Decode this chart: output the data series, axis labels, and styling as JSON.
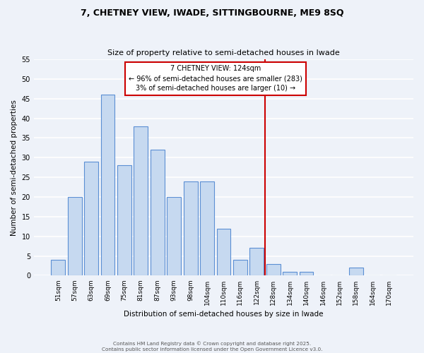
{
  "title": "7, CHETNEY VIEW, IWADE, SITTINGBOURNE, ME9 8SQ",
  "subtitle": "Size of property relative to semi-detached houses in Iwade",
  "xlabel": "Distribution of semi-detached houses by size in Iwade",
  "ylabel": "Number of semi-detached properties",
  "categories": [
    "51sqm",
    "57sqm",
    "63sqm",
    "69sqm",
    "75sqm",
    "81sqm",
    "87sqm",
    "93sqm",
    "98sqm",
    "104sqm",
    "110sqm",
    "116sqm",
    "122sqm",
    "128sqm",
    "134sqm",
    "140sqm",
    "146sqm",
    "152sqm",
    "158sqm",
    "164sqm",
    "170sqm"
  ],
  "values": [
    4,
    20,
    29,
    46,
    28,
    38,
    32,
    20,
    24,
    24,
    12,
    4,
    7,
    3,
    1,
    1,
    0,
    0,
    2,
    0,
    0
  ],
  "bar_color": "#c6d9f0",
  "bar_edge_color": "#5b8fd4",
  "vline_index": 12.5,
  "annotation_title": "7 CHETNEY VIEW: 124sqm",
  "annotation_line1": "← 96% of semi-detached houses are smaller (283)",
  "annotation_line2": "3% of semi-detached houses are larger (10) →",
  "annotation_box_color": "#ffffff",
  "annotation_box_edge": "#cc0000",
  "vline_color": "#cc0000",
  "ylim": [
    0,
    55
  ],
  "yticks": [
    0,
    5,
    10,
    15,
    20,
    25,
    30,
    35,
    40,
    45,
    50,
    55
  ],
  "background_color": "#eef2f9",
  "grid_color": "#ffffff",
  "footer_line1": "Contains HM Land Registry data © Crown copyright and database right 2025.",
  "footer_line2": "Contains public sector information licensed under the Open Government Licence v3.0."
}
